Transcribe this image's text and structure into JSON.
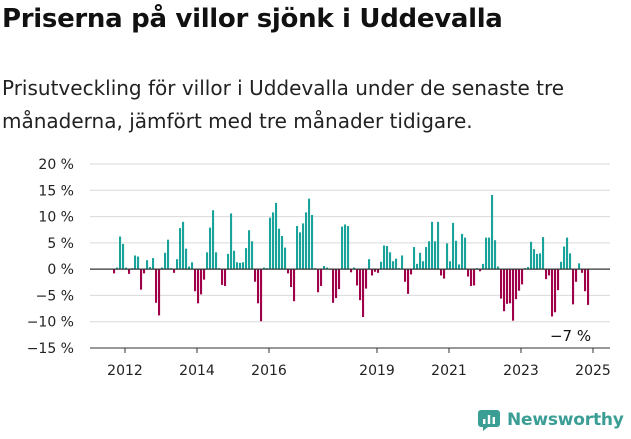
{
  "header": {
    "title": "Priserna på villor sjönk i Uddevalla",
    "subtitle": "Prisutveckling för villor i Uddevalla under de senaste tre månaderna, jämfört med tre månader tidigare."
  },
  "brand": {
    "name": "Newsworthy",
    "color": "#3a9e95",
    "icon": "newsworthy-logo-icon"
  },
  "chart_data": {
    "type": "bar",
    "title": "",
    "xlabel": "",
    "ylabel": "",
    "ylim": [
      -15,
      20
    ],
    "y_ticks": [
      20,
      15,
      10,
      5,
      0,
      -5,
      -10,
      -15
    ],
    "y_tick_labels": [
      "20 %",
      "15 %",
      "10 %",
      "5 %",
      "0 %",
      "−5 %",
      "−10 %",
      "−15 %"
    ],
    "x_start": "2011-09",
    "x_ticks": [
      "2012",
      "2014",
      "2016",
      "2019",
      "2021",
      "2023",
      "2025"
    ],
    "grid": "horizontal",
    "colors": {
      "positive": "#1aa39a",
      "negative": "#a0004a",
      "zero_line": "#333333",
      "grid": "#d9d9d9"
    },
    "annotation": {
      "text": "−7 %",
      "value": -7
    },
    "values": [
      -0.8,
      0.3,
      6.2,
      4.8,
      0.3,
      -0.9,
      0.2,
      2.6,
      2.4,
      -3.9,
      -0.8,
      1.7,
      0.4,
      2.1,
      -6.4,
      -8.8,
      0.3,
      3.1,
      5.6,
      0.2,
      -0.7,
      1.9,
      7.8,
      9.0,
      3.9,
      0.5,
      1.3,
      -4.2,
      -6.5,
      -4.8,
      -2.0,
      3.2,
      7.9,
      11.2,
      3.2,
      0.2,
      -3.0,
      -3.2,
      2.9,
      10.6,
      3.5,
      1.3,
      1.2,
      1.3,
      4.0,
      7.4,
      5.3,
      -2.4,
      -6.5,
      -9.9,
      0.3,
      0.2,
      9.8,
      10.8,
      12.6,
      7.7,
      6.3,
      4.1,
      -0.8,
      -3.4,
      -6.1,
      8.2,
      7.0,
      8.7,
      10.8,
      13.4,
      10.3,
      0.2,
      -4.4,
      -3.2,
      0.6,
      0.3,
      -0.1,
      -6.4,
      -5.5,
      -3.8,
      8.1,
      8.5,
      8.2,
      -0.6,
      0.3,
      -3.1,
      -5.9,
      -9.1,
      -3.7,
      1.9,
      -1.2,
      -0.5,
      -0.7,
      1.4,
      4.5,
      4.4,
      3.2,
      1.5,
      2.0,
      0.2,
      2.6,
      -2.4,
      -4.7,
      -1.0,
      4.2,
      1.0,
      3.1,
      1.5,
      4.2,
      5.3,
      9.0,
      5.3,
      9.0,
      -1.2,
      -1.8,
      4.9,
      1.5,
      8.8,
      5.4,
      0.9,
      6.7,
      6.0,
      -1.4,
      -3.2,
      -3.1,
      0.2,
      -0.4,
      1.0,
      6.0,
      6.0,
      14.1,
      5.5,
      0.5,
      -5.6,
      -8.0,
      -6.6,
      -6.5,
      -9.8,
      -5.7,
      -4.1,
      -2.9,
      0.2,
      0.4,
      5.2,
      3.8,
      2.9,
      3.0,
      6.1,
      -1.9,
      -1.2,
      -9.0,
      -8.2,
      -4.0,
      1.4,
      4.3,
      6.0,
      3.0,
      -6.7,
      -2.4,
      1.1,
      -0.7,
      -4.2,
      -6.8
    ]
  }
}
